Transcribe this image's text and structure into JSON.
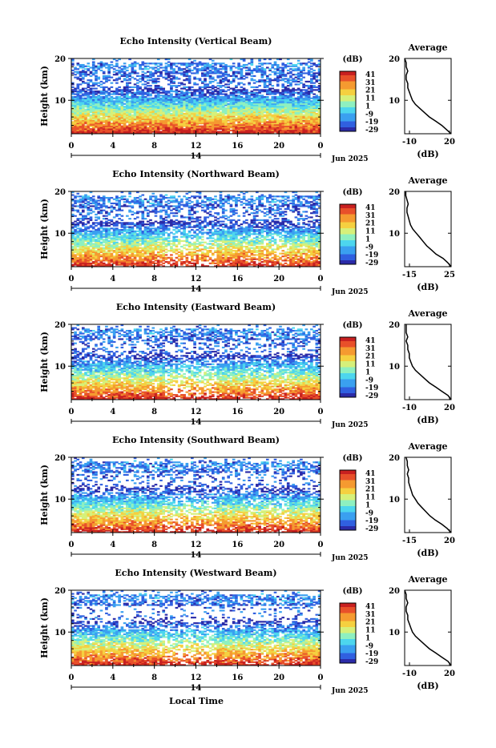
{
  "figure": {
    "x_axis_title": "Local Time",
    "colorbar_unit": "(dB)",
    "colorbar_ticks": [
      "41",
      "31",
      "21",
      "11",
      "1",
      "-9",
      "-19",
      "-29"
    ],
    "colormap": [
      "#2b2ba8",
      "#3060e0",
      "#3aa0f0",
      "#4dd6ee",
      "#8ef0c0",
      "#d6f07a",
      "#f5d040",
      "#f59a30",
      "#e8502a",
      "#c82020"
    ],
    "date_tick": "14",
    "date_label": "Jun 2025"
  },
  "chart_data": [
    {
      "type": "heatmap",
      "title": "Echo Intensity (Vertical Beam)",
      "ylabel": "Height (km)",
      "xlim": [
        0,
        24
      ],
      "ylim": [
        2,
        20
      ],
      "x_ticks": [
        "0",
        "4",
        "8",
        "12",
        "16",
        "20",
        "0"
      ],
      "y_ticks": [
        "20",
        "10"
      ],
      "value_range_db": [
        -29,
        41
      ],
      "profile": {
        "title": "Average",
        "xlabel": "(dB)",
        "xlim": [
          -10,
          20
        ],
        "x_ticks": [
          "-10",
          "20"
        ],
        "y_ticks": [
          "20",
          "10"
        ],
        "heights": [
          2,
          3,
          4,
          5,
          6,
          7,
          8,
          9,
          10,
          11,
          12,
          13,
          14,
          15,
          16,
          17,
          18,
          19,
          20
        ],
        "values": [
          20,
          17,
          14,
          10,
          6,
          3,
          0,
          -3,
          -5,
          -6,
          -7,
          -8,
          -8,
          -9,
          -9,
          -8,
          -9,
          -9,
          -10
        ]
      }
    },
    {
      "type": "heatmap",
      "title": "Echo Intensity (Northward Beam)",
      "ylabel": "Height (km)",
      "xlim": [
        0,
        24
      ],
      "ylim": [
        2,
        20
      ],
      "x_ticks": [
        "0",
        "4",
        "8",
        "12",
        "16",
        "20",
        "0"
      ],
      "y_ticks": [
        "20",
        "10"
      ],
      "value_range_db": [
        -29,
        41
      ],
      "profile": {
        "title": "Average",
        "xlabel": "(dB)",
        "xlim": [
          -15,
          25
        ],
        "x_ticks": [
          "-15",
          "25"
        ],
        "y_ticks": [
          "20",
          "10"
        ],
        "heights": [
          2,
          3,
          4,
          5,
          6,
          7,
          8,
          9,
          10,
          11,
          12,
          13,
          14,
          15,
          16,
          17,
          18,
          19,
          20
        ],
        "values": [
          25,
          22,
          18,
          12,
          8,
          4,
          1,
          -2,
          -5,
          -8,
          -10,
          -11,
          -12,
          -13,
          -13,
          -12,
          -13,
          -14,
          -14
        ]
      }
    },
    {
      "type": "heatmap",
      "title": "Echo Intensity (Eastward Beam)",
      "ylabel": "Height (km)",
      "xlim": [
        0,
        24
      ],
      "ylim": [
        2,
        20
      ],
      "x_ticks": [
        "0",
        "4",
        "8",
        "12",
        "16",
        "20",
        "0"
      ],
      "y_ticks": [
        "20",
        "10"
      ],
      "value_range_db": [
        -29,
        41
      ],
      "profile": {
        "title": "Average",
        "xlabel": "(dB)",
        "xlim": [
          -10,
          20
        ],
        "x_ticks": [
          "-10",
          "20"
        ],
        "y_ticks": [
          "20",
          "10"
        ],
        "heights": [
          2,
          3,
          4,
          5,
          6,
          7,
          8,
          9,
          10,
          11,
          12,
          13,
          14,
          15,
          16,
          17,
          18,
          19,
          20
        ],
        "values": [
          20,
          18,
          14,
          10,
          6,
          3,
          0,
          -3,
          -5,
          -6,
          -7,
          -7,
          -8,
          -8,
          -9,
          -8,
          -9,
          -9,
          -9
        ]
      }
    },
    {
      "type": "heatmap",
      "title": "Echo Intensity (Southward Beam)",
      "ylabel": "Height (km)",
      "xlim": [
        0,
        24
      ],
      "ylim": [
        2,
        20
      ],
      "x_ticks": [
        "0",
        "4",
        "8",
        "12",
        "16",
        "20",
        "0"
      ],
      "y_ticks": [
        "20",
        "10"
      ],
      "value_range_db": [
        -29,
        41
      ],
      "profile": {
        "title": "Average",
        "xlabel": "(dB)",
        "xlim": [
          -15,
          20
        ],
        "x_ticks": [
          "-15",
          "20"
        ],
        "y_ticks": [
          "20",
          "10"
        ],
        "heights": [
          2,
          3,
          4,
          5,
          6,
          7,
          8,
          9,
          10,
          11,
          12,
          13,
          14,
          15,
          16,
          17,
          18,
          19,
          20
        ],
        "values": [
          20,
          17,
          13,
          8,
          4,
          1,
          -2,
          -5,
          -7,
          -9,
          -10,
          -11,
          -12,
          -12,
          -13,
          -12,
          -13,
          -13,
          -14
        ]
      }
    },
    {
      "type": "heatmap",
      "title": "Echo Intensity (Westward Beam)",
      "ylabel": "Height (km)",
      "xlim": [
        0,
        24
      ],
      "ylim": [
        2,
        20
      ],
      "x_ticks": [
        "0",
        "4",
        "8",
        "12",
        "16",
        "20",
        "0"
      ],
      "y_ticks": [
        "20",
        "10"
      ],
      "value_range_db": [
        -29,
        41
      ],
      "profile": {
        "title": "Average",
        "xlabel": "(dB)",
        "xlim": [
          -10,
          20
        ],
        "x_ticks": [
          "-10",
          "20"
        ],
        "y_ticks": [
          "20",
          "10"
        ],
        "heights": [
          2,
          3,
          4,
          5,
          6,
          7,
          8,
          9,
          10,
          11,
          12,
          13,
          14,
          15,
          16,
          17,
          18,
          19,
          20
        ],
        "values": [
          20,
          18,
          14,
          10,
          6,
          3,
          0,
          -3,
          -5,
          -6,
          -7,
          -8,
          -8,
          -9,
          -9,
          -8,
          -9,
          -9,
          -10
        ]
      }
    }
  ]
}
